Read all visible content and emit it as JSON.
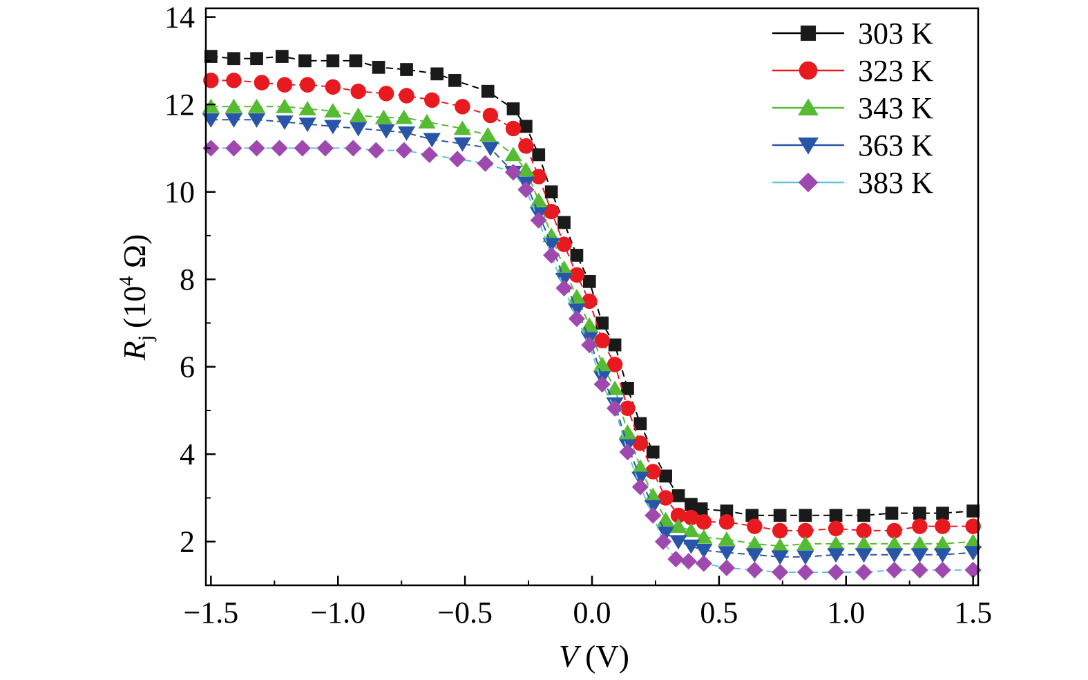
{
  "chart_data": {
    "type": "line",
    "title": "",
    "xlabel": {
      "var": "V",
      "unit": "(V)"
    },
    "ylabel": {
      "var": "R",
      "sub": "j",
      "unit_pre": "(10",
      "sup": "4",
      "unit_post": " Ω)"
    },
    "xlim": [
      -1.52,
      1.52
    ],
    "ylim": [
      1.0,
      14.2
    ],
    "x_ticks": [
      -1.5,
      -1.0,
      -0.5,
      0.0,
      0.5,
      1.0,
      1.5
    ],
    "x_tick_labels": [
      "−1.5",
      "−1.0",
      "−0.5",
      "0.0",
      "0.5",
      "1.0",
      "1.5"
    ],
    "y_ticks": [
      2,
      4,
      6,
      8,
      10,
      12,
      14
    ],
    "y_tick_labels": [
      "2",
      "4",
      "6",
      "8",
      "10",
      "12",
      "14"
    ],
    "grid": false,
    "legend_position": "top-right",
    "series": [
      {
        "name": "303 K",
        "color": "#1a1a1a",
        "marker": "square",
        "points": [
          [
            -1.5,
            13.1
          ],
          [
            -1.41,
            13.05
          ],
          [
            -1.32,
            13.05
          ],
          [
            -1.22,
            13.1
          ],
          [
            -1.13,
            13.0
          ],
          [
            -1.02,
            13.0
          ],
          [
            -0.93,
            13.0
          ],
          [
            -0.84,
            12.85
          ],
          [
            -0.73,
            12.8
          ],
          [
            -0.61,
            12.7
          ],
          [
            -0.54,
            12.55
          ],
          [
            -0.41,
            12.3
          ],
          [
            -0.31,
            11.9
          ],
          [
            -0.26,
            11.5
          ],
          [
            -0.21,
            10.85
          ],
          [
            -0.16,
            10.0
          ],
          [
            -0.11,
            9.3
          ],
          [
            -0.06,
            8.55
          ],
          [
            -0.01,
            7.95
          ],
          [
            0.04,
            7.0
          ],
          [
            0.09,
            6.5
          ],
          [
            0.14,
            5.5
          ],
          [
            0.19,
            4.7
          ],
          [
            0.24,
            4.05
          ],
          [
            0.29,
            3.5
          ],
          [
            0.34,
            3.05
          ],
          [
            0.39,
            2.85
          ],
          [
            0.43,
            2.75
          ],
          [
            0.53,
            2.7
          ],
          [
            0.63,
            2.6
          ],
          [
            0.74,
            2.6
          ],
          [
            0.84,
            2.6
          ],
          [
            0.96,
            2.6
          ],
          [
            1.07,
            2.6
          ],
          [
            1.18,
            2.65
          ],
          [
            1.29,
            2.65
          ],
          [
            1.38,
            2.65
          ],
          [
            1.5,
            2.7
          ]
        ]
      },
      {
        "name": "323 K",
        "color": "#e8191f",
        "marker": "circle",
        "points": [
          [
            -1.5,
            12.55
          ],
          [
            -1.41,
            12.55
          ],
          [
            -1.3,
            12.5
          ],
          [
            -1.21,
            12.45
          ],
          [
            -1.12,
            12.45
          ],
          [
            -1.02,
            12.4
          ],
          [
            -0.92,
            12.3
          ],
          [
            -0.81,
            12.25
          ],
          [
            -0.73,
            12.2
          ],
          [
            -0.63,
            12.1
          ],
          [
            -0.51,
            11.95
          ],
          [
            -0.4,
            11.75
          ],
          [
            -0.31,
            11.45
          ],
          [
            -0.26,
            11.05
          ],
          [
            -0.21,
            10.35
          ],
          [
            -0.16,
            9.55
          ],
          [
            -0.11,
            8.8
          ],
          [
            -0.06,
            8.1
          ],
          [
            -0.01,
            7.5
          ],
          [
            0.04,
            6.6
          ],
          [
            0.09,
            6.05
          ],
          [
            0.14,
            5.05
          ],
          [
            0.19,
            4.25
          ],
          [
            0.24,
            3.6
          ],
          [
            0.29,
            3.0
          ],
          [
            0.34,
            2.6
          ],
          [
            0.39,
            2.55
          ],
          [
            0.44,
            2.45
          ],
          [
            0.53,
            2.45
          ],
          [
            0.64,
            2.35
          ],
          [
            0.74,
            2.25
          ],
          [
            0.84,
            2.25
          ],
          [
            0.96,
            2.3
          ],
          [
            1.07,
            2.25
          ],
          [
            1.19,
            2.25
          ],
          [
            1.29,
            2.35
          ],
          [
            1.38,
            2.35
          ],
          [
            1.5,
            2.35
          ]
        ]
      },
      {
        "name": "343 K",
        "color": "#55bb33",
        "marker": "triangle-up",
        "points": [
          [
            -1.5,
            11.95
          ],
          [
            -1.41,
            11.95
          ],
          [
            -1.32,
            11.95
          ],
          [
            -1.21,
            11.95
          ],
          [
            -1.12,
            11.9
          ],
          [
            -1.02,
            11.85
          ],
          [
            -0.92,
            11.75
          ],
          [
            -0.82,
            11.7
          ],
          [
            -0.74,
            11.7
          ],
          [
            -0.65,
            11.6
          ],
          [
            -0.51,
            11.45
          ],
          [
            -0.41,
            11.3
          ],
          [
            -0.31,
            10.85
          ],
          [
            -0.26,
            10.5
          ],
          [
            -0.21,
            9.8
          ],
          [
            -0.16,
            9.0
          ],
          [
            -0.11,
            8.25
          ],
          [
            -0.06,
            7.6
          ],
          [
            -0.01,
            6.95
          ],
          [
            0.04,
            6.05
          ],
          [
            0.09,
            5.5
          ],
          [
            0.14,
            4.5
          ],
          [
            0.19,
            3.7
          ],
          [
            0.24,
            3.05
          ],
          [
            0.29,
            2.5
          ],
          [
            0.34,
            2.35
          ],
          [
            0.39,
            2.25
          ],
          [
            0.44,
            2.1
          ],
          [
            0.53,
            2.05
          ],
          [
            0.64,
            1.95
          ],
          [
            0.74,
            1.9
          ],
          [
            0.84,
            1.95
          ],
          [
            0.96,
            1.95
          ],
          [
            1.07,
            1.95
          ],
          [
            1.19,
            1.95
          ],
          [
            1.29,
            1.95
          ],
          [
            1.38,
            1.95
          ],
          [
            1.5,
            2.0
          ]
        ]
      },
      {
        "name": "363 K",
        "color": "#2955a8",
        "marker": "triangle-down",
        "points": [
          [
            -1.5,
            11.65
          ],
          [
            -1.41,
            11.65
          ],
          [
            -1.32,
            11.65
          ],
          [
            -1.21,
            11.6
          ],
          [
            -1.12,
            11.55
          ],
          [
            -1.02,
            11.5
          ],
          [
            -0.92,
            11.45
          ],
          [
            -0.81,
            11.4
          ],
          [
            -0.73,
            11.35
          ],
          [
            -0.63,
            11.2
          ],
          [
            -0.51,
            11.1
          ],
          [
            -0.4,
            11.0
          ],
          [
            -0.31,
            10.45
          ],
          [
            -0.26,
            10.2
          ],
          [
            -0.21,
            9.5
          ],
          [
            -0.16,
            8.8
          ],
          [
            -0.11,
            8.0
          ],
          [
            -0.06,
            7.3
          ],
          [
            -0.01,
            6.65
          ],
          [
            0.04,
            5.75
          ],
          [
            0.09,
            5.15
          ],
          [
            0.14,
            4.2
          ],
          [
            0.19,
            3.45
          ],
          [
            0.24,
            2.8
          ],
          [
            0.29,
            2.2
          ],
          [
            0.34,
            2.0
          ],
          [
            0.39,
            1.9
          ],
          [
            0.44,
            1.8
          ],
          [
            0.53,
            1.75
          ],
          [
            0.64,
            1.7
          ],
          [
            0.74,
            1.65
          ],
          [
            0.84,
            1.65
          ],
          [
            0.96,
            1.7
          ],
          [
            1.07,
            1.7
          ],
          [
            1.19,
            1.7
          ],
          [
            1.29,
            1.7
          ],
          [
            1.38,
            1.7
          ],
          [
            1.5,
            1.75
          ]
        ]
      },
      {
        "name": "383 K",
        "color": "#9e48b0",
        "marker": "diamond",
        "points": [
          [
            -1.5,
            11.0
          ],
          [
            -1.41,
            11.0
          ],
          [
            -1.32,
            11.0
          ],
          [
            -1.23,
            11.0
          ],
          [
            -1.14,
            11.0
          ],
          [
            -1.05,
            11.0
          ],
          [
            -0.94,
            11.0
          ],
          [
            -0.85,
            10.95
          ],
          [
            -0.74,
            10.95
          ],
          [
            -0.64,
            10.85
          ],
          [
            -0.53,
            10.75
          ],
          [
            -0.42,
            10.65
          ],
          [
            -0.31,
            10.45
          ],
          [
            -0.26,
            10.05
          ],
          [
            -0.21,
            9.35
          ],
          [
            -0.16,
            8.55
          ],
          [
            -0.11,
            7.8
          ],
          [
            -0.06,
            7.1
          ],
          [
            -0.01,
            6.5
          ],
          [
            0.04,
            5.6
          ],
          [
            0.09,
            5.05
          ],
          [
            0.14,
            4.05
          ],
          [
            0.19,
            3.25
          ],
          [
            0.24,
            2.6
          ],
          [
            0.28,
            2.0
          ],
          [
            0.33,
            1.6
          ],
          [
            0.38,
            1.55
          ],
          [
            0.44,
            1.5
          ],
          [
            0.53,
            1.4
          ],
          [
            0.64,
            1.35
          ],
          [
            0.74,
            1.3
          ],
          [
            0.84,
            1.3
          ],
          [
            0.96,
            1.3
          ],
          [
            1.07,
            1.3
          ],
          [
            1.19,
            1.35
          ],
          [
            1.29,
            1.35
          ],
          [
            1.38,
            1.35
          ],
          [
            1.5,
            1.35
          ]
        ]
      }
    ]
  }
}
